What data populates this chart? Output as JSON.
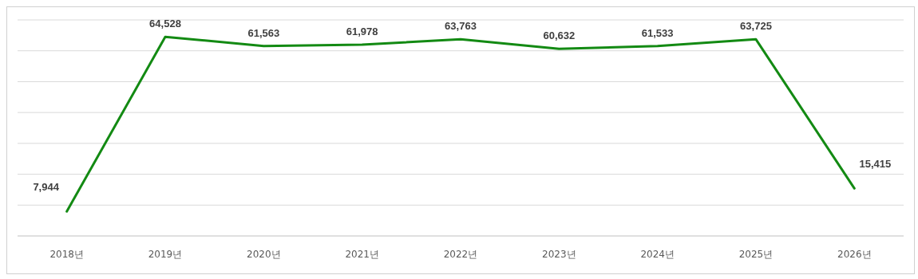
{
  "chart_data": {
    "type": "line",
    "categories": [
      "2018년",
      "2019년",
      "2020년",
      "2021년",
      "2022년",
      "2023년",
      "2024년",
      "2025년",
      "2026년"
    ],
    "series": [
      {
        "color": "#138a13",
        "values": [
          7944,
          64528,
          61563,
          61978,
          63763,
          60632,
          61533,
          63725,
          15415
        ],
        "value_labels": [
          "7,944",
          "64,528",
          "61,563",
          "61,978",
          "63,763",
          "60,632",
          "61,533",
          "63,725",
          "15,415"
        ]
      }
    ],
    "tick_labels": "x",
    "grid": "y",
    "marker": "none",
    "line_style": "solid"
  }
}
